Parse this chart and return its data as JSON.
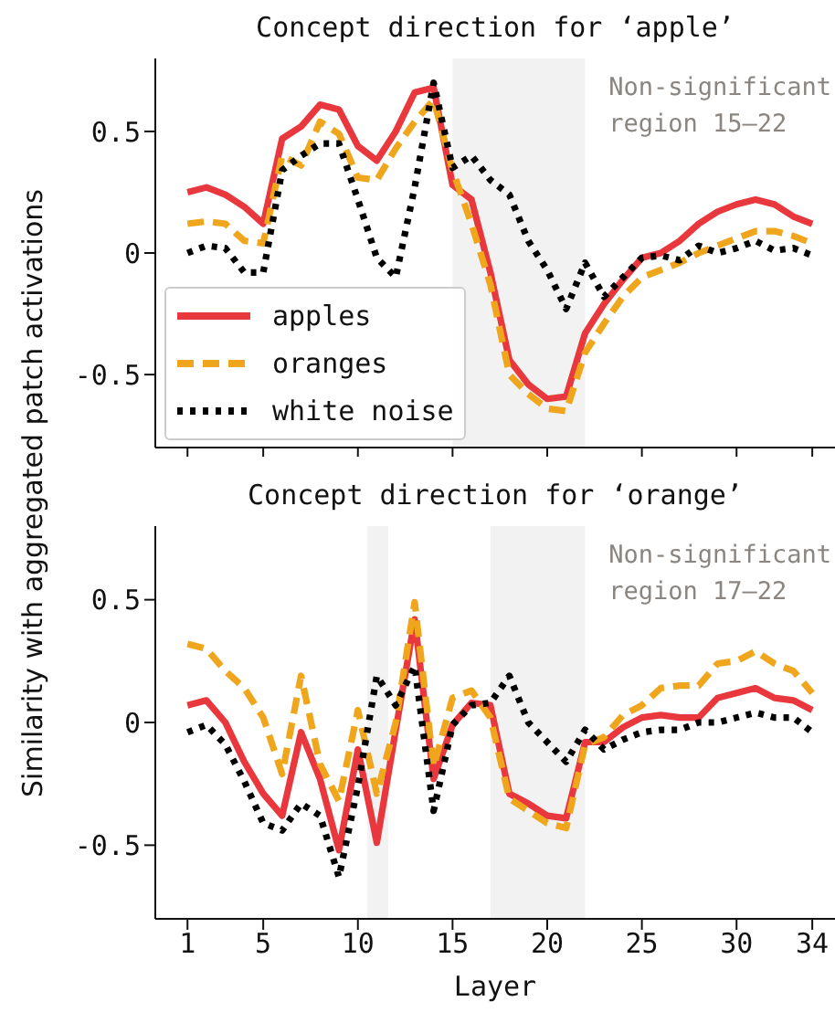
{
  "chart_data": [
    {
      "type": "line",
      "title": "Concept direction for ‘apple’",
      "ylabel": "Similarity with aggregated patch activations",
      "x": [
        1,
        2,
        3,
        4,
        5,
        6,
        7,
        8,
        9,
        10,
        11,
        12,
        13,
        14,
        15,
        16,
        17,
        18,
        19,
        20,
        21,
        22,
        23,
        24,
        25,
        26,
        27,
        28,
        29,
        30,
        31,
        32,
        33,
        34
      ],
      "xlim": [
        -0.7,
        35.2
      ],
      "xticks": [
        1,
        5,
        10,
        15,
        20,
        25,
        30,
        34
      ],
      "ylim": [
        -0.8,
        0.8
      ],
      "yticks": [
        -0.5,
        0,
        0.5
      ],
      "tick_labels": "y",
      "legend": "bottom left",
      "marker": "none",
      "bands": [
        {
          "axis": "x",
          "from": 15,
          "to": 22,
          "label": "Non-significant region 15–22",
          "color": "#f2f2f2"
        }
      ],
      "series": [
        {
          "name": "apples",
          "color": "#e8383d",
          "line_style": "solid",
          "values": [
            0.25,
            0.27,
            0.24,
            0.19,
            0.12,
            0.47,
            0.52,
            0.61,
            0.59,
            0.44,
            0.38,
            0.5,
            0.66,
            0.68,
            0.28,
            0.22,
            -0.08,
            -0.44,
            -0.54,
            -0.6,
            -0.59,
            -0.33,
            -0.21,
            -0.11,
            -0.02,
            0.0,
            0.05,
            0.12,
            0.17,
            0.2,
            0.22,
            0.2,
            0.15,
            0.12
          ]
        },
        {
          "name": "oranges",
          "color": "#f0a61c",
          "line_style": "dashed",
          "values": [
            0.12,
            0.13,
            0.12,
            0.05,
            0.04,
            0.4,
            0.36,
            0.54,
            0.49,
            0.31,
            0.3,
            0.43,
            0.54,
            0.63,
            0.34,
            0.12,
            -0.13,
            -0.5,
            -0.58,
            -0.64,
            -0.65,
            -0.41,
            -0.29,
            -0.18,
            -0.1,
            -0.07,
            -0.04,
            0.0,
            0.03,
            0.06,
            0.09,
            0.09,
            0.07,
            0.04
          ]
        },
        {
          "name": "white noise",
          "color": "#000000",
          "line_style": "dotted",
          "values": [
            0.0,
            0.03,
            0.02,
            -0.08,
            -0.08,
            0.34,
            0.4,
            0.45,
            0.45,
            0.22,
            -0.02,
            -0.1,
            0.27,
            0.7,
            0.35,
            0.4,
            0.3,
            0.24,
            0.05,
            -0.07,
            -0.23,
            -0.04,
            -0.18,
            -0.1,
            -0.02,
            -0.01,
            -0.03,
            0.03,
            0.0,
            0.02,
            0.05,
            0.01,
            0.02,
            -0.01
          ]
        }
      ]
    },
    {
      "type": "line",
      "title": "Concept direction for ‘orange’",
      "xlabel": "Layer",
      "x": [
        1,
        2,
        3,
        4,
        5,
        6,
        7,
        8,
        9,
        10,
        11,
        12,
        13,
        14,
        15,
        16,
        17,
        18,
        19,
        20,
        21,
        22,
        23,
        24,
        25,
        26,
        27,
        28,
        29,
        30,
        31,
        32,
        33,
        34
      ],
      "xlim": [
        -0.7,
        35.2
      ],
      "xticks": [
        1,
        5,
        10,
        15,
        20,
        25,
        30,
        34
      ],
      "ylim": [
        -0.8,
        0.8
      ],
      "yticks": [
        -0.5,
        0,
        0.5
      ],
      "marker": "none",
      "bands": [
        {
          "axis": "x",
          "from": 10.5,
          "to": 11.6,
          "color": "#f2f2f2"
        },
        {
          "axis": "x",
          "from": 17,
          "to": 22,
          "label": "Non-significant region 17–22",
          "color": "#f2f2f2"
        }
      ],
      "series": [
        {
          "color": "#e8383d",
          "line_style": "solid",
          "values": [
            0.07,
            0.09,
            0.0,
            -0.16,
            -0.29,
            -0.38,
            -0.04,
            -0.23,
            -0.52,
            -0.11,
            -0.49,
            -0.03,
            0.42,
            -0.23,
            -0.01,
            0.08,
            0.07,
            -0.29,
            -0.33,
            -0.38,
            -0.39,
            -0.08,
            -0.08,
            -0.02,
            0.02,
            0.03,
            0.02,
            0.02,
            0.1,
            0.12,
            0.14,
            0.1,
            0.09,
            0.05
          ]
        },
        {
          "color": "#f0a61c",
          "line_style": "dashed",
          "values": [
            0.32,
            0.3,
            0.21,
            0.14,
            0.02,
            -0.21,
            0.19,
            -0.17,
            -0.32,
            0.05,
            -0.29,
            0.0,
            0.49,
            -0.18,
            0.1,
            0.13,
            0.02,
            -0.31,
            -0.36,
            -0.41,
            -0.43,
            -0.09,
            -0.06,
            0.03,
            0.07,
            0.14,
            0.15,
            0.15,
            0.24,
            0.25,
            0.29,
            0.24,
            0.21,
            0.12
          ]
        },
        {
          "color": "#000000",
          "line_style": "dotted",
          "values": [
            -0.04,
            -0.01,
            -0.09,
            -0.24,
            -0.41,
            -0.44,
            -0.33,
            -0.38,
            -0.63,
            -0.26,
            0.19,
            0.07,
            0.23,
            -0.36,
            -0.01,
            0.07,
            0.08,
            0.19,
            0.0,
            -0.08,
            -0.16,
            -0.03,
            -0.11,
            -0.07,
            -0.04,
            -0.03,
            -0.03,
            0.0,
            0.0,
            0.02,
            0.04,
            0.02,
            0.02,
            -0.04
          ]
        }
      ]
    }
  ]
}
